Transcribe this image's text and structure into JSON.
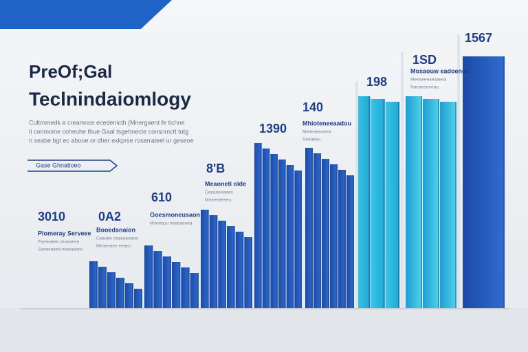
{
  "header": {
    "title_lines": [
      "PreOf;Gal",
      "Teclnindaiomlogy"
    ]
  },
  "description": {
    "lines": [
      "Cultromedk a creamnce ecedenicth (Mnergaent fe tichne",
      "ti conmoine coheuhe thue Gaal tsgehnecte consnmctt tutg",
      "n seabe bgt ec abooe or dher exkprse roserrateel ur geseoe"
    ]
  },
  "button": {
    "label": "Gase Ghnatioeo"
  },
  "callouts": [
    {
      "value": "3010",
      "label": "Plomeray Serveee",
      "sublines": [
        "Pareeatee ceoeaeeu",
        "Soeeeaeea neeeaeew"
      ]
    },
    {
      "value": "0A2",
      "label": "Booedsnaion",
      "sublines": [
        "Ceaoee oeaeaeeaoe",
        "Meaeeaee eeaeu"
      ]
    },
    {
      "value": "610",
      "label": "Goesmoneusaon",
      "sublines": [
        "Moeeauu oeeeaeeea"
      ]
    },
    {
      "value": "8'B",
      "label": "Meaoneti olde",
      "sublines": [
        "Ceeaeeeaeen",
        "Meaeeaeeeu"
      ]
    },
    {
      "value": "1390",
      "label": "",
      "sublines": []
    },
    {
      "value": "140",
      "label": "Mhioteneeaadou",
      "sublines": [
        "Meeeaeeaeea",
        "Seeaeeu"
      ]
    },
    {
      "value": "198",
      "label": "",
      "sublines": []
    },
    {
      "value": "1SD",
      "label": "Mosaouw eadoeneu",
      "sublines": [
        "Meeaeeeaeaaeea",
        "Naeaeeeeeau"
      ]
    },
    {
      "value": "1567",
      "label": "",
      "sublines": []
    }
  ]
}
